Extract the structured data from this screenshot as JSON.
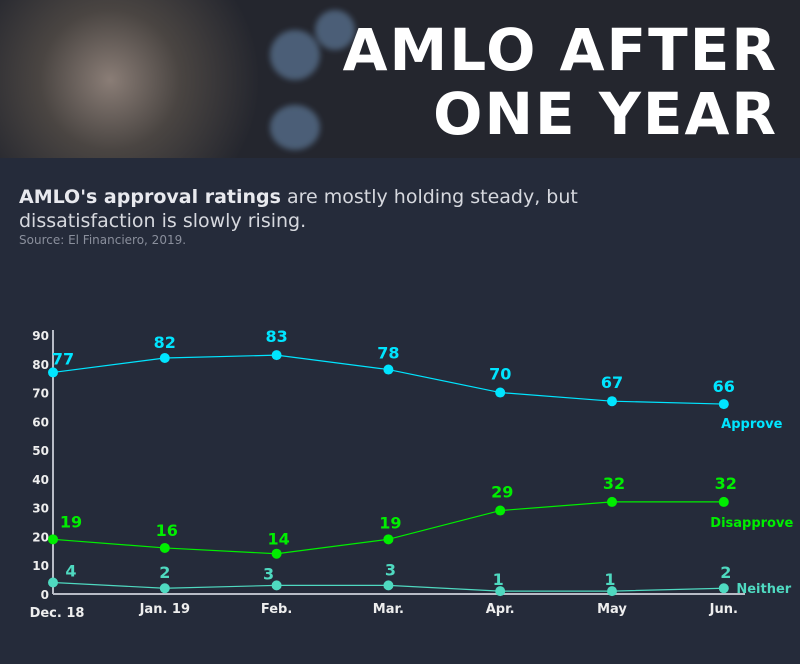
{
  "header": {
    "title_line1": "AMLO AFTER",
    "title_line2": "ONE YEAR"
  },
  "subtitle": {
    "bold": "AMLO's approval ratings",
    "rest": " are mostly holding steady, but dissatisfaction is slowly rising."
  },
  "source": "Source: El Financiero, 2019.",
  "chart_data": {
    "type": "line",
    "categories": [
      "Dec. 18",
      "Jan. 19",
      "Feb.",
      "Mar.",
      "Apr.",
      "May",
      "Jun."
    ],
    "ylim": [
      0,
      90
    ],
    "yticks": [
      0,
      10,
      20,
      30,
      40,
      50,
      60,
      70,
      80,
      90
    ],
    "grid": false,
    "series": [
      {
        "name": "Approve",
        "color": "#00e5ff",
        "values": [
          77,
          82,
          83,
          78,
          70,
          67,
          66
        ]
      },
      {
        "name": "Disapprove",
        "color": "#00ee00",
        "values": [
          19,
          16,
          14,
          19,
          29,
          32,
          32
        ]
      },
      {
        "name": "Neither",
        "color": "#4fd9c0",
        "values": [
          4,
          2,
          3,
          3,
          1,
          1,
          2
        ]
      }
    ]
  }
}
